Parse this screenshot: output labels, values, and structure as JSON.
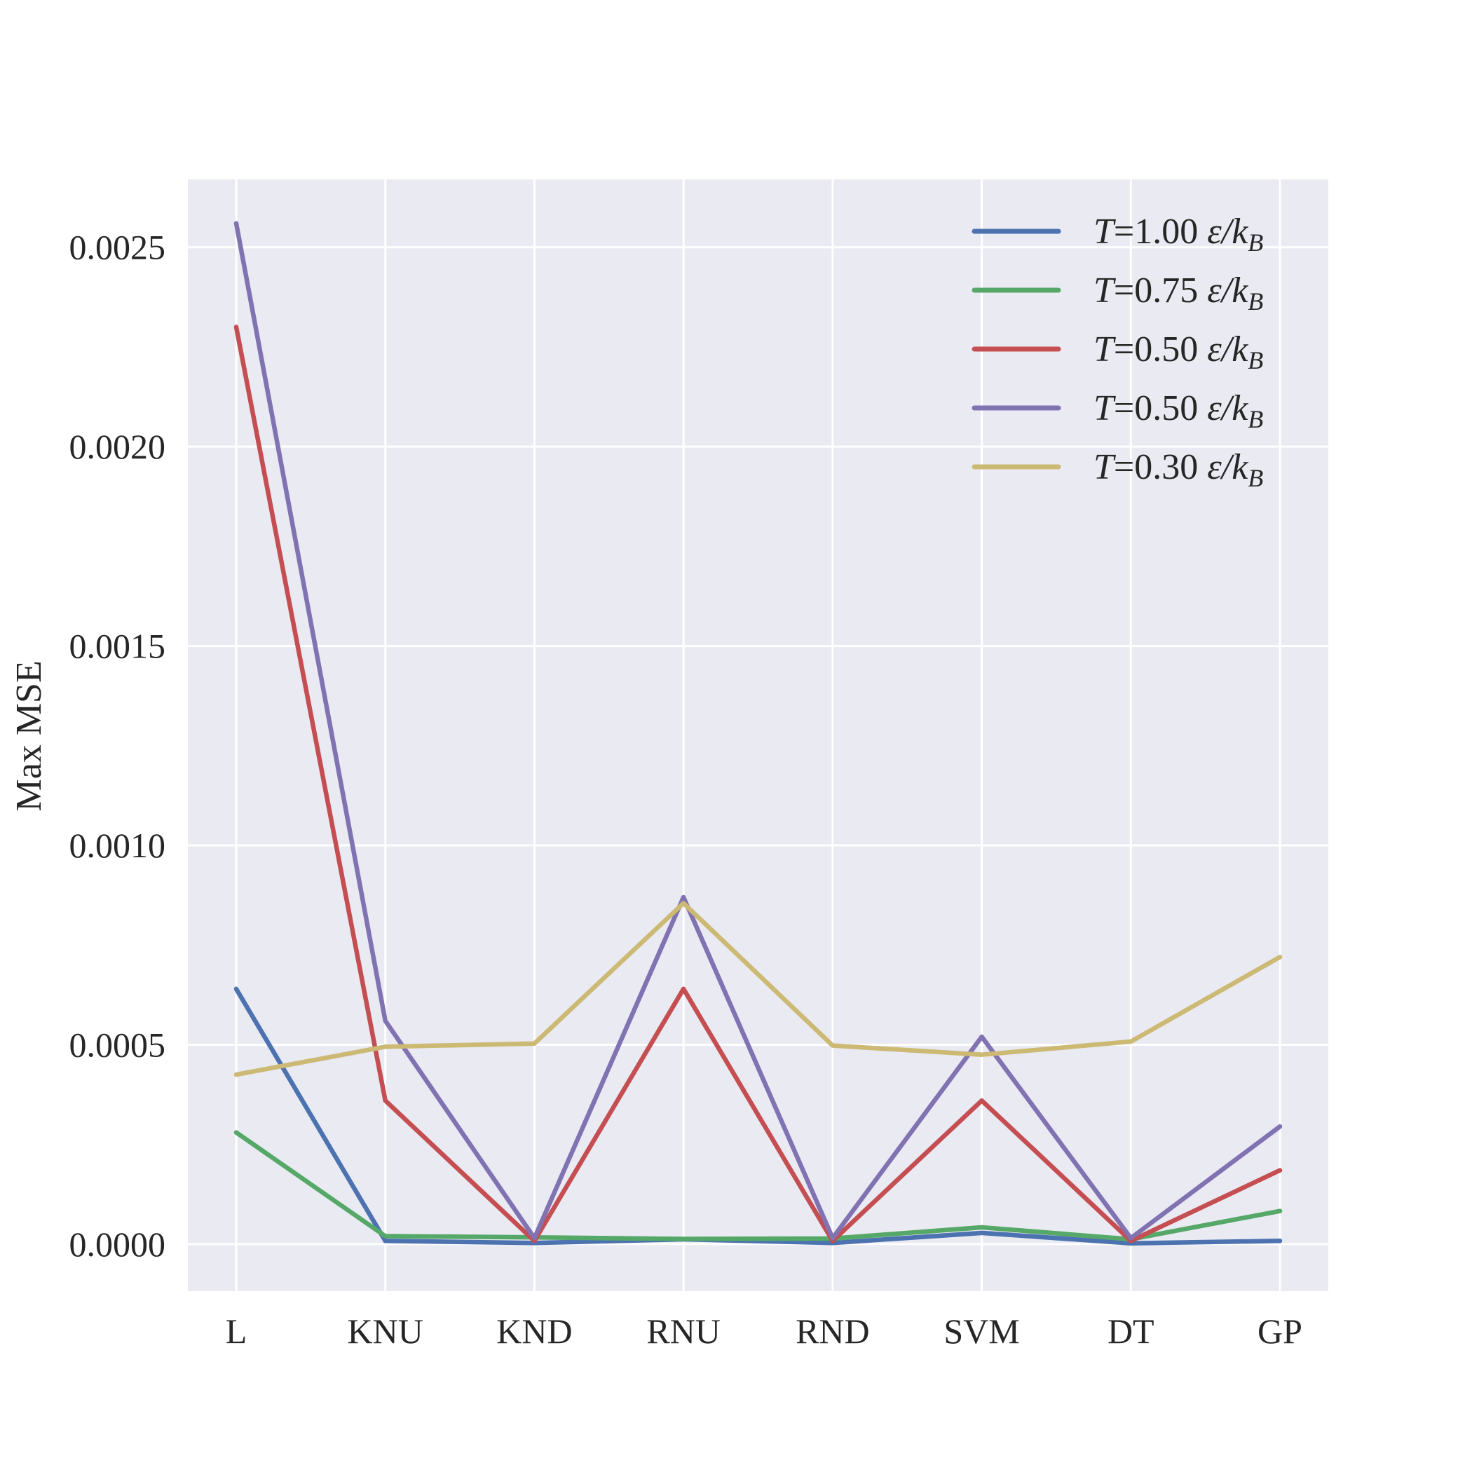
{
  "chart_data": {
    "type": "line",
    "title": "",
    "xlabel": "",
    "ylabel": "Max MSE",
    "categories": [
      "L",
      "KNU",
      "KND",
      "RNU",
      "RND",
      "SVM",
      "DT",
      "GP"
    ],
    "ylim": [
      -0.000118,
      0.00267
    ],
    "yticks": [
      0.0,
      0.0005,
      0.001,
      0.0015,
      0.002,
      0.0025
    ],
    "ytick_labels": [
      "0.0000",
      "0.0005",
      "0.0010",
      "0.0015",
      "0.0020",
      "0.0025"
    ],
    "grid": true,
    "legend_position": "top-right",
    "series": [
      {
        "name": "T = 1.00 ε/k_B",
        "legend": {
          "var": "T",
          "eq": "=",
          "value": "1.00",
          "unit": "ε/k",
          "sub": "B"
        },
        "color": "#4c72b0",
        "values": [
          0.00064,
          8e-06,
          3e-06,
          1.2e-05,
          3e-06,
          2.8e-05,
          2e-06,
          8e-06
        ]
      },
      {
        "name": "T = 0.75 ε/k_B",
        "legend": {
          "var": "T",
          "eq": "=",
          "value": "0.75",
          "unit": "ε/k",
          "sub": "B"
        },
        "color": "#55a868",
        "values": [
          0.00028,
          2e-05,
          1.7e-05,
          1.3e-05,
          1.4e-05,
          4.2e-05,
          1.2e-05,
          8.3e-05
        ]
      },
      {
        "name": "T = 0.50 ε/k_B",
        "legend": {
          "var": "T",
          "eq": "=",
          "value": "0.50",
          "unit": "ε/k",
          "sub": "B"
        },
        "color": "#c44e52",
        "values": [
          0.0023,
          0.00036,
          8e-06,
          0.00064,
          8e-06,
          0.00036,
          8e-06,
          0.000185
        ]
      },
      {
        "name": "T = 0.50 ε/k_B",
        "legend": {
          "var": "T",
          "eq": "=",
          "value": "0.50",
          "unit": "ε/k",
          "sub": "B"
        },
        "color": "#8172b2",
        "values": [
          0.00256,
          0.00056,
          1.5e-05,
          0.00087,
          1.5e-05,
          0.00052,
          1.5e-05,
          0.000295
        ]
      },
      {
        "name": "T = 0.30 ε/k_B",
        "legend": {
          "var": "T",
          "eq": "=",
          "value": "0.30",
          "unit": "ε/k",
          "sub": "B"
        },
        "color": "#ccb974",
        "values": [
          0.000425,
          0.000495,
          0.000503,
          0.000855,
          0.000498,
          0.000475,
          0.000508,
          0.00072
        ]
      }
    ]
  }
}
